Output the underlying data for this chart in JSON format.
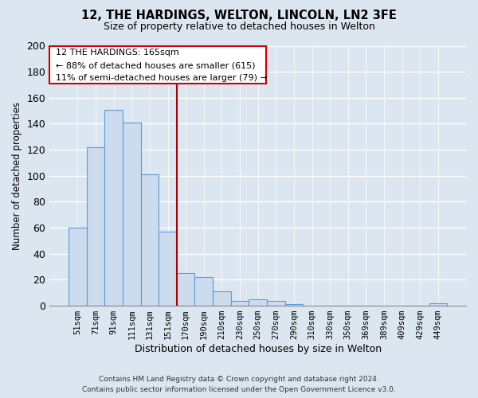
{
  "title": "12, THE HARDINGS, WELTON, LINCOLN, LN2 3FE",
  "subtitle": "Size of property relative to detached houses in Welton",
  "xlabel": "Distribution of detached houses by size in Welton",
  "ylabel": "Number of detached properties",
  "bar_labels": [
    "51sqm",
    "71sqm",
    "91sqm",
    "111sqm",
    "131sqm",
    "151sqm",
    "170sqm",
    "190sqm",
    "210sqm",
    "230sqm",
    "250sqm",
    "270sqm",
    "290sqm",
    "310sqm",
    "330sqm",
    "350sqm",
    "369sqm",
    "389sqm",
    "409sqm",
    "429sqm",
    "449sqm"
  ],
  "bar_values": [
    60,
    122,
    151,
    141,
    101,
    57,
    25,
    22,
    11,
    4,
    5,
    4,
    1,
    0,
    0,
    0,
    0,
    0,
    0,
    0,
    2
  ],
  "bar_color": "#ccdcee",
  "bar_edge_color": "#5b9bd5",
  "vline_color": "#aa0000",
  "annotation_title": "12 THE HARDINGS: 165sqm",
  "annotation_line1": "← 88% of detached houses are smaller (615)",
  "annotation_line2": "11% of semi-detached houses are larger (79) →",
  "annotation_box_color": "#ffffff",
  "annotation_box_edge": "#cc0000",
  "footer_line1": "Contains HM Land Registry data © Crown copyright and database right 2024.",
  "footer_line2": "Contains public sector information licensed under the Open Government Licence v3.0.",
  "bg_color": "#dce6f0",
  "plot_bg_color": "#dce6f0",
  "grid_color": "#ffffff",
  "ylim": [
    0,
    200
  ],
  "yticks": [
    0,
    20,
    40,
    60,
    80,
    100,
    120,
    140,
    160,
    180,
    200
  ]
}
